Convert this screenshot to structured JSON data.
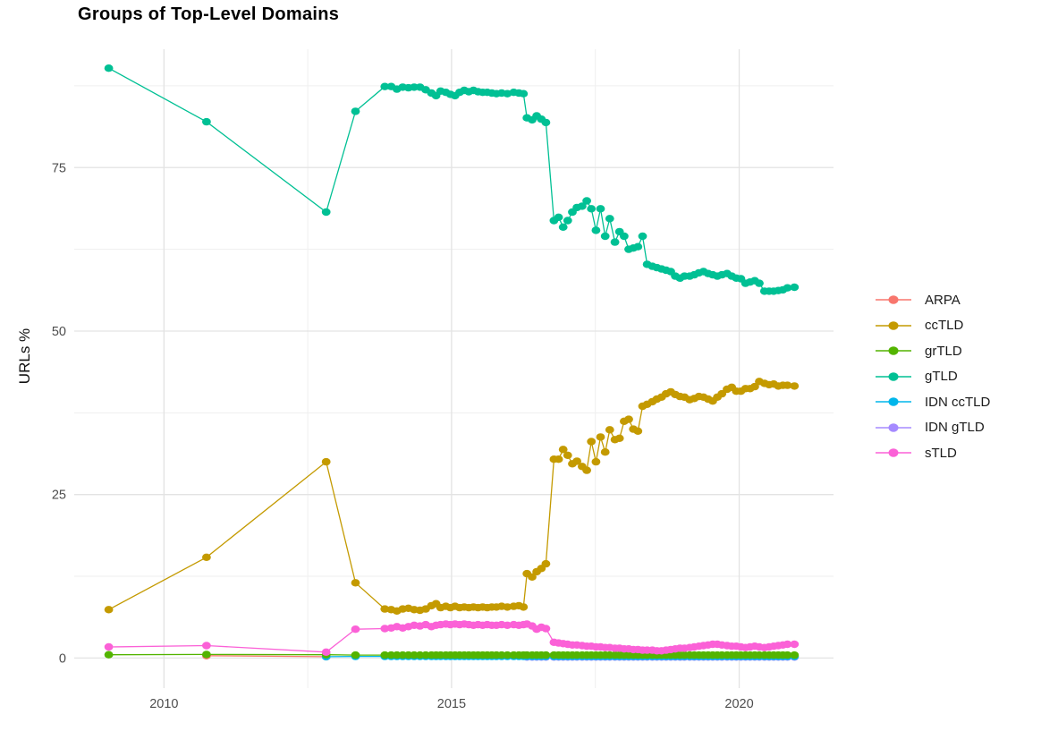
{
  "chart_data": {
    "type": "line",
    "title": "Groups of Top-Level Domains",
    "xlabel": "",
    "ylabel": "URLs %",
    "grid": true,
    "legend_position": "right",
    "x_axis": {
      "range": [
        2008.44,
        2021.64
      ],
      "ticks": [
        2010,
        2015,
        2020
      ],
      "tick_labels": [
        "2010",
        "2015",
        "2020"
      ],
      "minor": [
        2012.5,
        2017.5
      ]
    },
    "y_axis": {
      "range": [
        -4.6,
        93.1
      ],
      "ticks": [
        0,
        25,
        50,
        75
      ],
      "tick_labels": [
        "0",
        "25",
        "50",
        "75"
      ],
      "minor": [
        12.5,
        37.5,
        62.5,
        87.5
      ]
    },
    "colors": {
      "grid_major": "#e3e3e3",
      "grid_minor": "#efefef",
      "axis_text": "#4d4d4d"
    },
    "dense_x": [
      2013.84,
      2013.95,
      2014.05,
      2014.15,
      2014.25,
      2014.35,
      2014.45,
      2014.55,
      2014.65,
      2014.73,
      2014.81,
      2014.9,
      2014.98,
      2015.06,
      2015.14,
      2015.22,
      2015.3,
      2015.38,
      2015.46,
      2015.54,
      2015.62,
      2015.7,
      2015.78,
      2015.87,
      2015.97,
      2016.08,
      2016.17,
      2016.25,
      2016.31,
      2016.4,
      2016.48,
      2016.56,
      2016.64,
      2016.78,
      2016.86,
      2016.94,
      2017.02,
      2017.1,
      2017.18,
      2017.27,
      2017.35,
      2017.43,
      2017.51,
      2017.59,
      2017.67,
      2017.75,
      2017.84,
      2017.92,
      2018.0,
      2018.08,
      2018.16,
      2018.24,
      2018.32,
      2018.4,
      2018.49,
      2018.57,
      2018.65,
      2018.73,
      2018.81,
      2018.89,
      2018.97,
      2019.05,
      2019.14,
      2019.22,
      2019.3,
      2019.38,
      2019.46,
      2019.54,
      2019.62,
      2019.7,
      2019.79,
      2019.87,
      2019.95,
      2020.03,
      2020.11,
      2020.19,
      2020.27,
      2020.35,
      2020.44,
      2020.52,
      2020.6,
      2020.68,
      2020.76,
      2020.84,
      2020.96
    ],
    "series": [
      {
        "name": "ARPA",
        "color": "#F8766D",
        "sparse": [
          [
            2010.74,
            0.35
          ],
          [
            2012.82,
            0.2
          ]
        ]
      },
      {
        "name": "ccTLD",
        "color": "#C49A00",
        "sparse": [
          [
            2009.04,
            7.4
          ],
          [
            2010.74,
            15.4
          ],
          [
            2012.82,
            30.0
          ],
          [
            2013.33,
            11.5
          ]
        ],
        "dense_y": [
          7.5,
          7.4,
          7.2,
          7.5,
          7.6,
          7.4,
          7.3,
          7.5,
          8.0,
          8.3,
          7.7,
          7.9,
          7.7,
          7.9,
          7.7,
          7.8,
          7.7,
          7.8,
          7.7,
          7.8,
          7.7,
          7.8,
          7.8,
          7.9,
          7.8,
          7.9,
          8.0,
          7.8,
          12.9,
          12.4,
          13.2,
          13.7,
          14.4,
          30.4,
          30.4,
          31.9,
          31.0,
          29.7,
          30.1,
          29.3,
          28.7,
          33.1,
          30.0,
          33.8,
          31.5,
          34.9,
          33.4,
          33.6,
          36.2,
          36.5,
          35.0,
          34.7,
          38.5,
          38.8,
          39.2,
          39.6,
          39.9,
          40.4,
          40.7,
          40.3,
          40.0,
          39.9,
          39.5,
          39.7,
          40.0,
          39.9,
          39.6,
          39.3,
          39.9,
          40.4,
          41.1,
          41.4,
          40.8,
          40.8,
          41.2,
          41.2,
          41.5,
          42.3,
          42.0,
          41.8,
          41.9,
          41.6,
          41.7,
          41.7,
          41.6
        ]
      },
      {
        "name": "grTLD",
        "color": "#53B400",
        "sparse": [
          [
            2009.04,
            0.5
          ],
          [
            2010.74,
            0.55
          ],
          [
            2012.82,
            0.5
          ],
          [
            2013.33,
            0.45
          ]
        ],
        "const_y": 0.45
      },
      {
        "name": "gTLD",
        "color": "#00C094",
        "sparse": [
          [
            2009.04,
            90.2
          ],
          [
            2010.74,
            82.0
          ],
          [
            2012.82,
            68.2
          ],
          [
            2013.33,
            83.6
          ]
        ],
        "dense_y": [
          87.4,
          87.4,
          87.0,
          87.3,
          87.2,
          87.3,
          87.3,
          86.9,
          86.4,
          86.0,
          86.7,
          86.5,
          86.2,
          86.0,
          86.5,
          86.8,
          86.6,
          86.8,
          86.6,
          86.5,
          86.5,
          86.4,
          86.3,
          86.4,
          86.3,
          86.5,
          86.4,
          86.3,
          82.6,
          82.3,
          82.9,
          82.4,
          81.9,
          66.9,
          67.4,
          65.9,
          66.9,
          68.2,
          68.9,
          69.1,
          69.9,
          68.7,
          65.4,
          68.7,
          64.5,
          67.2,
          63.6,
          65.2,
          64.5,
          62.5,
          62.7,
          62.9,
          64.5,
          60.2,
          59.9,
          59.7,
          59.5,
          59.3,
          59.1,
          58.4,
          58.1,
          58.4,
          58.4,
          58.6,
          58.9,
          59.1,
          58.8,
          58.6,
          58.4,
          58.6,
          58.8,
          58.4,
          58.1,
          58.0,
          57.3,
          57.5,
          57.7,
          57.3,
          56.1,
          56.1,
          56.1,
          56.2,
          56.3,
          56.6,
          56.7
        ]
      },
      {
        "name": "IDN ccTLD",
        "color": "#00B6EB",
        "sparse": [
          [
            2012.82,
            0.2
          ],
          [
            2013.33,
            0.25
          ]
        ],
        "const_y": 0.25
      },
      {
        "name": "IDN gTLD",
        "color": "#A58AFF",
        "const_y": 0.15,
        "x_from": 2016.31
      },
      {
        "name": "sTLD",
        "color": "#FB61D7",
        "sparse": [
          [
            2009.04,
            1.7
          ],
          [
            2010.74,
            1.9
          ],
          [
            2012.82,
            0.9
          ],
          [
            2013.33,
            4.4
          ]
        ],
        "dense_y": [
          4.5,
          4.6,
          4.8,
          4.6,
          4.8,
          5.0,
          4.9,
          5.1,
          4.8,
          5.0,
          5.1,
          5.2,
          5.1,
          5.2,
          5.1,
          5.2,
          5.1,
          5.0,
          5.1,
          5.0,
          5.1,
          5.0,
          5.0,
          5.1,
          5.0,
          5.1,
          5.0,
          5.1,
          5.2,
          4.9,
          4.4,
          4.7,
          4.5,
          2.4,
          2.3,
          2.2,
          2.1,
          2.0,
          2.0,
          1.9,
          1.8,
          1.8,
          1.7,
          1.7,
          1.6,
          1.6,
          1.5,
          1.5,
          1.4,
          1.4,
          1.3,
          1.3,
          1.2,
          1.2,
          1.2,
          1.1,
          1.1,
          1.2,
          1.3,
          1.4,
          1.5,
          1.5,
          1.6,
          1.7,
          1.8,
          1.9,
          2.0,
          2.1,
          2.1,
          2.0,
          1.9,
          1.8,
          1.8,
          1.7,
          1.6,
          1.7,
          1.8,
          1.7,
          1.6,
          1.7,
          1.8,
          1.9,
          2.0,
          2.1,
          2.1
        ]
      }
    ],
    "draw_order": [
      "ARPA",
      "IDN gTLD",
      "IDN ccTLD",
      "grTLD",
      "ccTLD",
      "gTLD",
      "sTLD"
    ]
  }
}
